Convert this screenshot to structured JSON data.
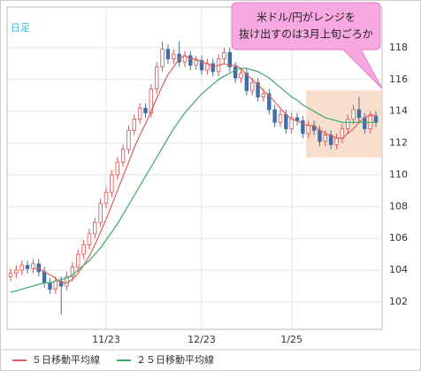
{
  "chart_data": {
    "type": "candlestick",
    "label": "日足",
    "annotation": [
      "米ドル/円がレンジを",
      "抜け出すのは3月上旬ごろか"
    ],
    "categories": [
      null,
      null,
      null,
      null,
      null,
      null,
      null,
      null,
      null,
      null,
      null,
      null,
      null,
      null,
      null,
      null,
      null,
      "11/23",
      null,
      null,
      null,
      null,
      null,
      null,
      null,
      null,
      null,
      null,
      null,
      null,
      null,
      null,
      null,
      null,
      "12/23",
      null,
      null,
      null,
      null,
      null,
      null,
      null,
      null,
      null,
      null,
      null,
      null,
      null,
      null,
      null,
      "1/25",
      null,
      null,
      null,
      null,
      null,
      null,
      null,
      null,
      null,
      null,
      null,
      null,
      null,
      null,
      null
    ],
    "open": [
      103.6,
      103.8,
      104.0,
      104.3,
      104.1,
      104.4,
      103.9,
      103.2,
      102.8,
      103.3,
      103.0,
      103.6,
      104.2,
      105.0,
      105.6,
      106.3,
      107.0,
      108.2,
      108.9,
      110.0,
      110.8,
      111.6,
      112.8,
      113.5,
      114.2,
      113.9,
      115.4,
      116.8,
      117.9,
      117.3,
      117.6,
      117.1,
      117.5,
      116.9,
      117.2,
      116.6,
      117.0,
      116.5,
      117.3,
      117.7,
      116.8,
      116.1,
      116.4,
      115.3,
      115.8,
      114.9,
      115.1,
      114.1,
      113.3,
      113.8,
      112.9,
      113.6,
      113.4,
      112.6,
      113.1,
      112.8,
      112.1,
      112.5,
      111.9,
      112.3,
      112.9,
      113.5,
      114.1,
      113.6,
      112.9,
      113.7
    ],
    "high": [
      104.1,
      104.3,
      104.6,
      104.6,
      104.7,
      104.7,
      104.2,
      103.5,
      103.6,
      103.6,
      103.9,
      104.5,
      105.3,
      105.9,
      106.6,
      107.3,
      108.5,
      109.2,
      110.3,
      111.1,
      111.9,
      113.1,
      113.8,
      114.5,
      114.5,
      115.7,
      117.1,
      118.4,
      118.2,
      117.9,
      118.4,
      117.8,
      117.8,
      117.5,
      117.5,
      117.3,
      117.3,
      117.6,
      118.0,
      118.0,
      117.1,
      116.7,
      116.7,
      116.1,
      116.1,
      115.4,
      115.4,
      114.4,
      114.1,
      114.1,
      113.9,
      113.9,
      113.7,
      113.4,
      113.4,
      113.1,
      112.8,
      112.8,
      112.6,
      113.2,
      113.8,
      114.4,
      114.9,
      113.9,
      114.0,
      114.0
    ],
    "low": [
      103.3,
      103.5,
      103.7,
      103.8,
      103.8,
      103.6,
      102.9,
      102.5,
      102.5,
      101.2,
      102.7,
      103.3,
      103.9,
      104.7,
      105.3,
      106.0,
      106.7,
      107.9,
      108.6,
      109.7,
      110.5,
      111.3,
      112.5,
      113.2,
      113.6,
      113.6,
      115.1,
      116.5,
      117.0,
      117.0,
      116.8,
      116.8,
      116.6,
      116.6,
      116.3,
      116.3,
      116.2,
      116.2,
      117.0,
      116.5,
      115.8,
      115.8,
      115.0,
      115.0,
      114.6,
      114.6,
      113.8,
      113.0,
      113.0,
      112.6,
      112.6,
      113.1,
      112.3,
      112.3,
      112.5,
      111.8,
      111.8,
      111.6,
      111.6,
      112.0,
      112.6,
      113.2,
      113.3,
      112.6,
      112.6,
      113.0
    ],
    "close": [
      103.8,
      104.0,
      104.3,
      104.1,
      104.4,
      103.9,
      103.2,
      102.8,
      103.3,
      103.0,
      103.6,
      104.2,
      105.0,
      105.6,
      106.3,
      107.0,
      108.2,
      108.9,
      110.0,
      110.8,
      111.6,
      112.8,
      113.5,
      114.2,
      113.9,
      115.4,
      116.8,
      117.9,
      117.3,
      117.6,
      117.1,
      117.5,
      116.9,
      117.2,
      116.6,
      117.0,
      116.5,
      117.3,
      117.7,
      116.8,
      116.1,
      116.4,
      115.3,
      115.8,
      114.9,
      115.1,
      114.1,
      113.3,
      113.8,
      112.9,
      113.6,
      113.4,
      112.6,
      113.1,
      112.8,
      112.1,
      112.5,
      111.9,
      112.3,
      112.9,
      113.5,
      114.1,
      113.6,
      112.9,
      113.7,
      113.3
    ],
    "up_color": "#d9534f",
    "down_color": "#3f6fa6",
    "series": [
      {
        "name": "５日移動平均線",
        "color": "#e0605a",
        "values": [
          null,
          null,
          null,
          null,
          104.1,
          104.1,
          103.9,
          103.7,
          103.5,
          103.2,
          103.2,
          103.4,
          103.8,
          104.3,
          104.9,
          105.6,
          106.4,
          107.2,
          108.1,
          109.0,
          109.9,
          110.8,
          111.7,
          112.5,
          113.2,
          114.0,
          114.8,
          115.6,
          116.3,
          116.8,
          117.3,
          117.5,
          117.3,
          117.3,
          117.1,
          117.0,
          116.8,
          116.9,
          117.0,
          116.9,
          116.9,
          116.7,
          116.3,
          116.0,
          115.7,
          115.3,
          115.0,
          114.6,
          114.2,
          113.8,
          113.5,
          113.4,
          113.2,
          113.1,
          113.1,
          112.8,
          112.6,
          112.5,
          112.3,
          112.3,
          112.6,
          112.9,
          113.3,
          113.6,
          113.8,
          113.7
        ]
      },
      {
        "name": "２５日移動平均線",
        "color": "#3aaa6a",
        "values": [
          102.6,
          102.7,
          102.8,
          102.9,
          103.0,
          103.1,
          103.2,
          103.2,
          103.3,
          103.4,
          103.5,
          103.7,
          104.0,
          104.3,
          104.6,
          105.0,
          105.4,
          105.9,
          106.4,
          106.9,
          107.5,
          108.1,
          108.7,
          109.3,
          109.9,
          110.5,
          111.1,
          111.7,
          112.3,
          112.9,
          113.4,
          113.9,
          114.3,
          114.7,
          115.1,
          115.4,
          115.7,
          116.0,
          116.2,
          116.4,
          116.6,
          116.7,
          116.7,
          116.6,
          116.5,
          116.3,
          116.1,
          115.8,
          115.5,
          115.2,
          114.9,
          114.7,
          114.4,
          114.2,
          114.0,
          113.8,
          113.6,
          113.5,
          113.4,
          113.3,
          113.3,
          113.3,
          113.3,
          113.3,
          113.3,
          113.3
        ]
      }
    ],
    "ylim": [
      100.27,
      120.56
    ],
    "yticks": [
      102,
      104,
      106,
      108,
      110,
      112,
      114,
      116,
      118
    ],
    "grid": true
  }
}
